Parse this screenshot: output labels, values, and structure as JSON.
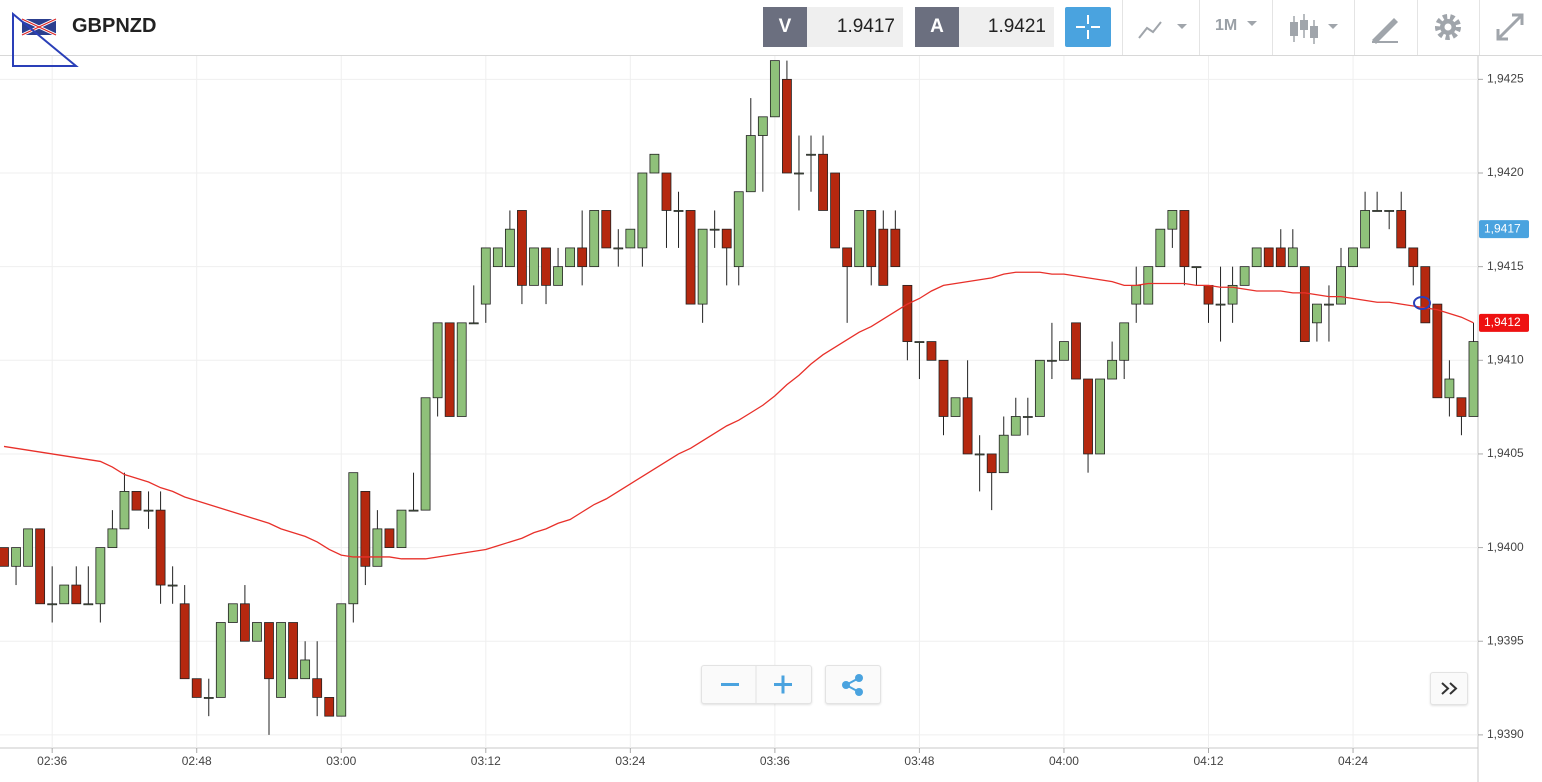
{
  "toolbar": {
    "symbol": "GBPNZD",
    "sell_label": "V",
    "sell_price": "1.9417",
    "buy_label": "A",
    "buy_price": "1.9421",
    "timeframe": "1M"
  },
  "chart_data": {
    "type": "candlestick",
    "categories": [
      null,
      null,
      null,
      null,
      "02:36",
      null,
      null,
      null,
      null,
      null,
      null,
      null,
      null,
      null,
      null,
      null,
      "02:48",
      null,
      null,
      null,
      null,
      null,
      null,
      null,
      null,
      null,
      null,
      null,
      "03:00",
      null,
      null,
      null,
      null,
      null,
      null,
      null,
      null,
      null,
      null,
      null,
      "03:12",
      null,
      null,
      null,
      null,
      null,
      null,
      null,
      null,
      null,
      null,
      null,
      "03:24",
      null,
      null,
      null,
      null,
      null,
      null,
      null,
      null,
      null,
      null,
      null,
      "03:36",
      null,
      null,
      null,
      null,
      null,
      null,
      null,
      null,
      null,
      null,
      null,
      "03:48",
      null,
      null,
      null,
      null,
      null,
      null,
      null,
      null,
      null,
      null,
      null,
      "04:00",
      null,
      null,
      null,
      null,
      null,
      null,
      null,
      null,
      null,
      null,
      null,
      "04:12",
      null,
      null,
      null,
      null,
      null,
      null,
      null,
      null,
      null,
      null,
      null,
      "04:24",
      null,
      null,
      null,
      null,
      null,
      null,
      null,
      null,
      null,
      null
    ],
    "up_color": "#8fc17a",
    "down_color": "#b5280f",
    "open": [
      1.94,
      1.9399,
      1.9399,
      1.9401,
      1.9397,
      1.9397,
      1.9398,
      1.9397,
      1.9397,
      1.94,
      1.9401,
      1.9403,
      1.9402,
      1.9402,
      1.9398,
      1.9397,
      1.9393,
      1.9392,
      1.9392,
      1.9396,
      1.9397,
      1.9395,
      1.9396,
      1.9392,
      1.9396,
      1.9393,
      1.9393,
      1.9392,
      1.9391,
      1.9397,
      1.9403,
      1.9399,
      1.9401,
      1.94,
      1.9402,
      1.9402,
      1.9408,
      1.9412,
      1.9407,
      1.9412,
      1.9413,
      1.9415,
      1.9415,
      1.9418,
      1.9414,
      1.9416,
      1.9414,
      1.9415,
      1.9416,
      1.9415,
      1.9418,
      1.9416,
      1.9416,
      1.9416,
      1.942,
      1.942,
      1.9418,
      1.9418,
      1.9413,
      1.9417,
      1.9417,
      1.9415,
      1.9419,
      1.9422,
      1.9423,
      1.9425,
      1.942,
      1.9421,
      1.9421,
      1.942,
      1.9416,
      1.9415,
      1.9418,
      1.9417,
      1.9417,
      1.9414,
      1.9411,
      1.9411,
      1.941,
      1.9407,
      1.9408,
      1.9405,
      1.9405,
      1.9404,
      1.9406,
      1.9407,
      1.9407,
      1.941,
      1.941,
      1.9412,
      1.9409,
      1.9405,
      1.9409,
      1.941,
      1.9413,
      1.9413,
      1.9415,
      1.9417,
      1.9418,
      1.9415,
      1.9414,
      1.9413,
      1.9413,
      1.9414,
      1.9415,
      1.9416,
      1.9416,
      1.9415,
      1.9415,
      1.9412,
      1.9413,
      1.9413,
      1.9415,
      1.9416,
      1.9418,
      1.9418,
      1.9418,
      1.9416,
      1.9415,
      1.9413,
      1.9408,
      1.9408,
      1.9407
    ],
    "high": [
      1.94,
      1.94,
      1.9401,
      1.9401,
      1.9399,
      1.9398,
      1.9399,
      1.9399,
      1.94,
      1.9402,
      1.9404,
      1.9403,
      1.9403,
      1.9403,
      1.9399,
      1.9398,
      1.9393,
      1.9393,
      1.9396,
      1.9397,
      1.9398,
      1.9396,
      1.9396,
      1.9396,
      1.9396,
      1.9395,
      1.9395,
      1.9392,
      1.9397,
      1.9404,
      1.9403,
      1.9402,
      1.9401,
      1.9402,
      1.9404,
      1.9408,
      1.9412,
      1.9412,
      1.9412,
      1.9414,
      1.9416,
      1.9416,
      1.9418,
      1.9418,
      1.9416,
      1.9416,
      1.9416,
      1.9416,
      1.9418,
      1.9418,
      1.9418,
      1.9417,
      1.9417,
      1.942,
      1.9421,
      1.942,
      1.9419,
      1.9418,
      1.9417,
      1.9418,
      1.9417,
      1.9419,
      1.9424,
      1.9423,
      1.9426,
      1.9426,
      1.9422,
      1.9422,
      1.9422,
      1.942,
      1.9416,
      1.9418,
      1.9418,
      1.9418,
      1.9418,
      1.9414,
      1.9411,
      1.9411,
      1.941,
      1.9408,
      1.941,
      1.9406,
      1.9405,
      1.9407,
      1.9408,
      1.9408,
      1.941,
      1.9412,
      1.9411,
      1.9412,
      1.9409,
      1.9409,
      1.9411,
      1.9412,
      1.9415,
      1.9415,
      1.9417,
      1.9418,
      1.9418,
      1.9415,
      1.9414,
      1.9415,
      1.9415,
      1.9415,
      1.9416,
      1.9416,
      1.9417,
      1.9417,
      1.9415,
      1.9413,
      1.9414,
      1.9416,
      1.9416,
      1.9419,
      1.9419,
      1.9418,
      1.9419,
      1.9416,
      1.9415,
      1.9413,
      1.941,
      1.9408,
      1.9412
    ],
    "low": [
      1.9399,
      1.9398,
      1.9399,
      1.9397,
      1.9396,
      1.9397,
      1.9397,
      1.9397,
      1.9396,
      1.94,
      1.9401,
      1.9402,
      1.9401,
      1.9397,
      1.9397,
      1.9393,
      1.9392,
      1.9391,
      1.9392,
      1.9396,
      1.9395,
      1.9395,
      1.939,
      1.9392,
      1.9393,
      1.9393,
      1.9391,
      1.9391,
      1.9391,
      1.9396,
      1.9398,
      1.9399,
      1.94,
      1.94,
      1.9402,
      1.9402,
      1.9407,
      1.9407,
      1.9407,
      1.9412,
      1.9412,
      1.9415,
      1.9415,
      1.9413,
      1.9414,
      1.9413,
      1.9414,
      1.9415,
      1.9414,
      1.9415,
      1.9416,
      1.9415,
      1.9416,
      1.9415,
      1.942,
      1.9416,
      1.9416,
      1.9413,
      1.9412,
      1.9416,
      1.9414,
      1.9414,
      1.9419,
      1.9419,
      1.9423,
      1.942,
      1.9418,
      1.9419,
      1.9418,
      1.9416,
      1.9412,
      1.9415,
      1.9414,
      1.9414,
      1.9415,
      1.941,
      1.9409,
      1.941,
      1.9406,
      1.9407,
      1.9405,
      1.9403,
      1.9402,
      1.9404,
      1.9406,
      1.9406,
      1.9407,
      1.9409,
      1.941,
      1.9409,
      1.9404,
      1.9405,
      1.9409,
      1.9409,
      1.9412,
      1.9413,
      1.9415,
      1.9416,
      1.9414,
      1.9414,
      1.9412,
      1.9411,
      1.9412,
      1.9414,
      1.9415,
      1.9415,
      1.9415,
      1.9415,
      1.9411,
      1.9411,
      1.9411,
      1.9413,
      1.9415,
      1.9416,
      1.9418,
      1.9417,
      1.9416,
      1.9414,
      1.9412,
      1.9408,
      1.9407,
      1.9406,
      1.9407
    ],
    "close": [
      1.9399,
      1.94,
      1.9401,
      1.9397,
      1.9397,
      1.9398,
      1.9397,
      1.9397,
      1.94,
      1.9401,
      1.9403,
      1.9402,
      1.9402,
      1.9398,
      1.9398,
      1.9393,
      1.9392,
      1.9392,
      1.9396,
      1.9397,
      1.9395,
      1.9396,
      1.9393,
      1.9396,
      1.9393,
      1.9394,
      1.9392,
      1.9391,
      1.9397,
      1.9404,
      1.9399,
      1.9401,
      1.94,
      1.9402,
      1.9402,
      1.9408,
      1.9412,
      1.9407,
      1.9412,
      1.9412,
      1.9416,
      1.9416,
      1.9417,
      1.9414,
      1.9416,
      1.9414,
      1.9415,
      1.9416,
      1.9415,
      1.9418,
      1.9416,
      1.9416,
      1.9417,
      1.942,
      1.9421,
      1.9418,
      1.9418,
      1.9413,
      1.9417,
      1.9417,
      1.9416,
      1.9419,
      1.9422,
      1.9423,
      1.9426,
      1.942,
      1.942,
      1.9421,
      1.9418,
      1.9416,
      1.9415,
      1.9418,
      1.9415,
      1.9414,
      1.9415,
      1.9411,
      1.9411,
      1.941,
      1.9407,
      1.9408,
      1.9405,
      1.9405,
      1.9404,
      1.9406,
      1.9407,
      1.9407,
      1.941,
      1.941,
      1.9411,
      1.9409,
      1.9405,
      1.9409,
      1.941,
      1.9412,
      1.9414,
      1.9415,
      1.9417,
      1.9418,
      1.9415,
      1.9415,
      1.9413,
      1.9413,
      1.9414,
      1.9415,
      1.9416,
      1.9415,
      1.9415,
      1.9416,
      1.9411,
      1.9413,
      1.9413,
      1.9415,
      1.9416,
      1.9418,
      1.9418,
      1.9418,
      1.9416,
      1.9415,
      1.9412,
      1.9408,
      1.9409,
      1.9407,
      1.9411
    ],
    "series": [
      {
        "type": "line",
        "color": "#e8302a",
        "values": [
          1.94054,
          1.94053,
          1.94052,
          1.94051,
          1.9405,
          1.94049,
          1.94048,
          1.94047,
          1.94046,
          1.94043,
          1.94039,
          1.94037,
          1.94035,
          1.94032,
          1.9403,
          1.94027,
          1.94025,
          1.94023,
          1.94021,
          1.94019,
          1.94017,
          1.94015,
          1.94013,
          1.9401,
          1.94008,
          1.94006,
          1.94003,
          1.93999,
          1.93996,
          1.93995,
          1.93995,
          1.93995,
          1.93995,
          1.93994,
          1.93994,
          1.93994,
          1.93995,
          1.93996,
          1.93997,
          1.93998,
          1.93999,
          1.94001,
          1.94003,
          1.94005,
          1.94008,
          1.9401,
          1.94013,
          1.94015,
          1.94019,
          1.94023,
          1.94026,
          1.9403,
          1.94034,
          1.94038,
          1.94042,
          1.94046,
          1.9405,
          1.94053,
          1.94057,
          1.94061,
          1.94065,
          1.94068,
          1.94072,
          1.94076,
          1.94081,
          1.94087,
          1.94092,
          1.94098,
          1.94103,
          1.94107,
          1.94111,
          1.94115,
          1.94118,
          1.94122,
          1.94126,
          1.9413,
          1.94133,
          1.94137,
          1.9414,
          1.94141,
          1.94142,
          1.94143,
          1.94144,
          1.94146,
          1.94147,
          1.94147,
          1.94147,
          1.94146,
          1.94146,
          1.94145,
          1.94144,
          1.94143,
          1.94142,
          1.9414,
          1.9414,
          1.94141,
          1.94141,
          1.94141,
          1.94141,
          1.9414,
          1.9414,
          1.94139,
          1.94139,
          1.94138,
          1.94137,
          1.94137,
          1.94137,
          1.94136,
          1.94136,
          1.94135,
          1.94134,
          1.94134,
          1.94133,
          1.94132,
          1.94131,
          1.94131,
          1.9413,
          1.94129,
          1.94128,
          1.94127,
          1.94125,
          1.94123,
          1.9412
        ]
      }
    ],
    "ylim": [
      1.93893,
      1.94263
    ],
    "yticks": [
      {
        "value": 1.939,
        "label": "1,9390"
      },
      {
        "value": 1.9395,
        "label": "1,9395"
      },
      {
        "value": 1.94,
        "label": "1,9400"
      },
      {
        "value": 1.9405,
        "label": "1,9405"
      },
      {
        "value": 1.941,
        "label": "1,9410"
      },
      {
        "value": 1.9415,
        "label": "1,9415"
      },
      {
        "value": 1.942,
        "label": "1,9420"
      },
      {
        "value": 1.9425,
        "label": "1,9425"
      }
    ],
    "grid": true,
    "price_tags": [
      {
        "value": 1.9417,
        "label": "1,9417",
        "color": "#4aa3df"
      },
      {
        "value": 1.9412,
        "label": "1,9412",
        "color": "#ee1111"
      }
    ]
  }
}
